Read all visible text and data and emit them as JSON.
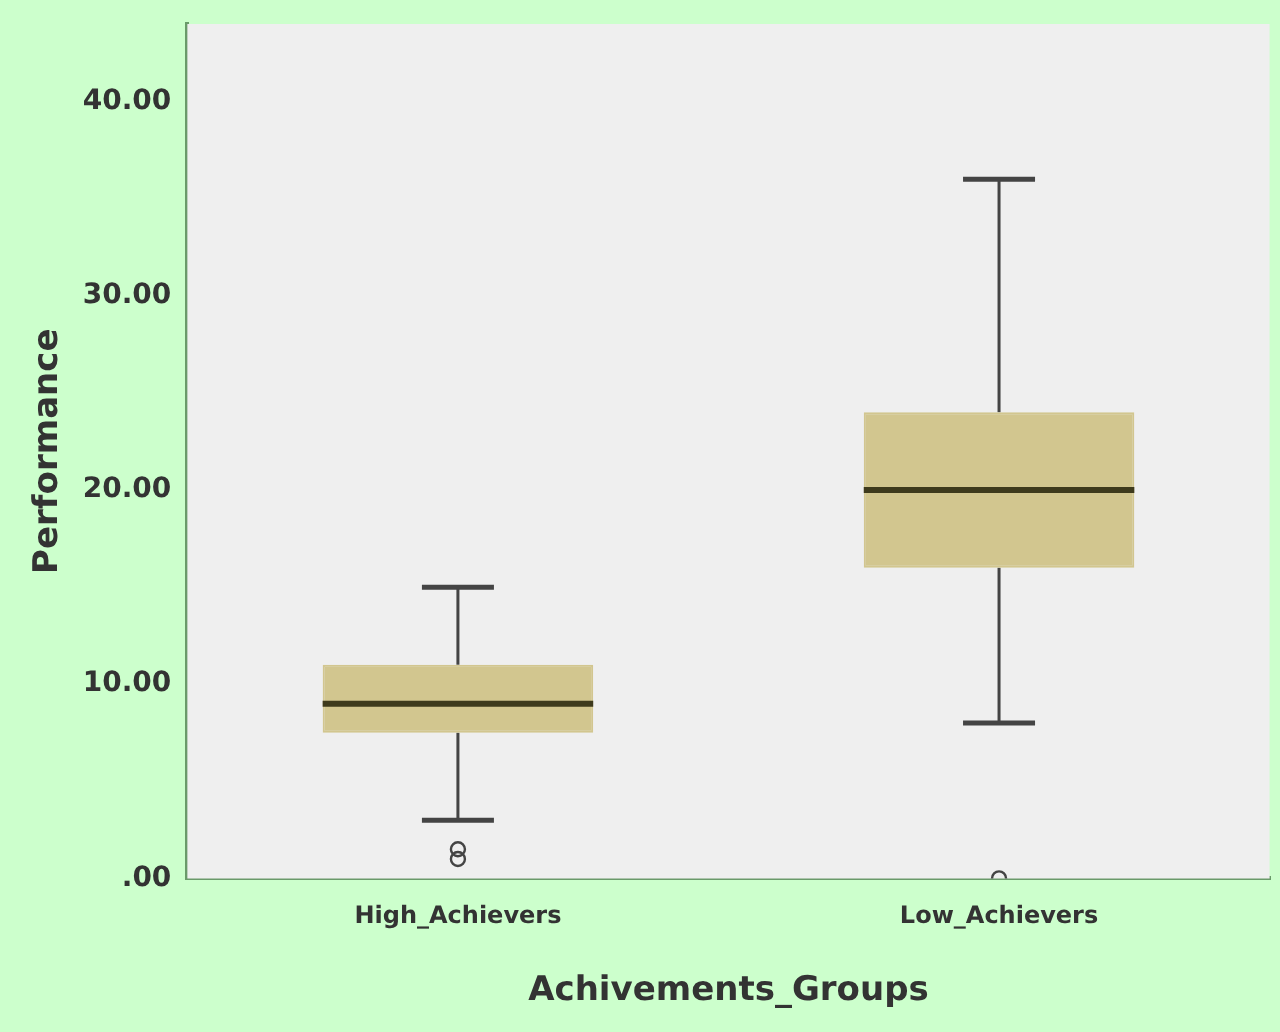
{
  "chart_data": {
    "type": "box",
    "xlabel": "Achivements_Groups",
    "ylabel": "Performance",
    "categories": [
      "High_Achievers",
      "Low_Achievers"
    ],
    "boxes": [
      {
        "low": 3,
        "q1": 7.5,
        "median": 9,
        "q3": 11,
        "high": 15,
        "outliers": [
          1.5,
          1
        ]
      },
      {
        "low": 8,
        "q1": 16,
        "median": 20,
        "q3": 24,
        "high": 36,
        "outliers": [
          0
        ]
      }
    ],
    "color": "#d2c68f",
    "ylim": [
      0,
      44
    ],
    "yticks": [
      {
        "value": 0,
        "label": ".00"
      },
      {
        "value": 10,
        "label": "10.00"
      },
      {
        "value": 20,
        "label": "20.00"
      },
      {
        "value": 30,
        "label": "30.00"
      },
      {
        "value": 40,
        "label": "40.00"
      }
    ],
    "grid": false,
    "legend": false
  }
}
